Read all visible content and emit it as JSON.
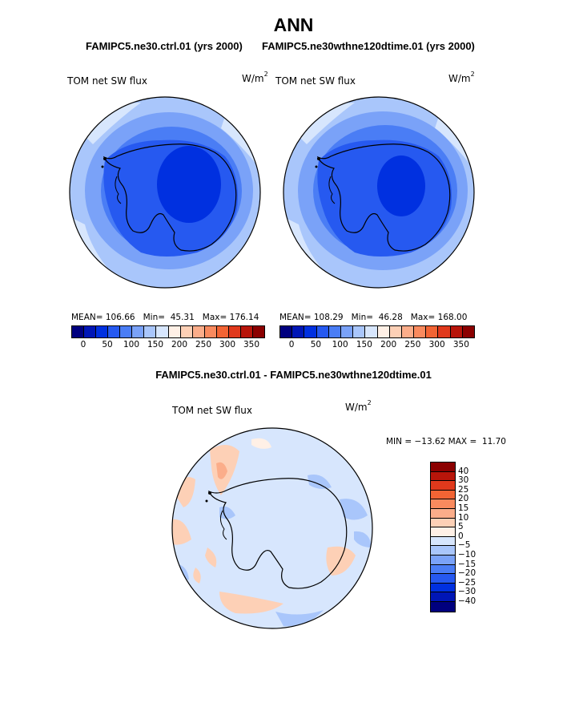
{
  "header": {
    "season": "ANN",
    "case_a": "FAMIPC5.ne30.ctrl.01 (yrs 2000)",
    "case_b": "FAMIPC5.ne30wthne120dtime.01 (yrs 2000)"
  },
  "panels": {
    "left": {
      "variable": "TOM net SW flux",
      "units_base": "W/m",
      "units_exp": "2",
      "stats": "MEAN= 106.66   Min=  45.31   Max= 176.14"
    },
    "right": {
      "variable": "TOM net SW flux",
      "units_base": "W/m",
      "units_exp": "2",
      "stats": "MEAN= 108.29   Min=  46.28   Max= 168.00"
    },
    "diff": {
      "title": "FAMIPC5.ne30.ctrl.01 - FAMIPC5.ne30wthne120dtime.01",
      "variable": "TOM net SW flux",
      "units_base": "W/m",
      "units_exp": "2",
      "minmax": "MIN = −13.62 MAX =  11.70"
    }
  },
  "colorbars": {
    "abs_colors": [
      "#00007f",
      "#0016b6",
      "#0030e0",
      "#2659f0",
      "#4a7df5",
      "#7aa2f8",
      "#a9c6fb",
      "#d7e6fd",
      "#fff0e6",
      "#fdd0b6",
      "#fbad8a",
      "#f98a5e",
      "#f26434",
      "#e0391c",
      "#b8150a",
      "#8b0000"
    ],
    "abs_ticks": [
      "0",
      "50",
      "100",
      "150",
      "200",
      "250",
      "300",
      "350"
    ],
    "diff_colors": [
      "#8b0000",
      "#b8150a",
      "#e0391c",
      "#f26434",
      "#f98a5e",
      "#fbad8a",
      "#fdd0b6",
      "#fff0e6",
      "#d7e6fd",
      "#a9c6fb",
      "#7aa2f8",
      "#4a7df5",
      "#2659f0",
      "#0030e0",
      "#0016b6",
      "#00007f"
    ],
    "diff_ticks": [
      "40",
      "30",
      "25",
      "20",
      "15",
      "10",
      "5",
      "0",
      "−5",
      "−10",
      "−15",
      "−20",
      "−25",
      "−30",
      "−40"
    ]
  },
  "chart_data": [
    {
      "type": "heatmap",
      "projection": "south-polar stereographic",
      "title": "FAMIPC5.ne30.ctrl.01 (yrs 2000)",
      "variable": "TOM net SW flux",
      "units": "W/m^2",
      "mean": 106.66,
      "min": 45.31,
      "max": 176.14,
      "levels": [
        0,
        25,
        50,
        75,
        100,
        125,
        150,
        175,
        200,
        225,
        250,
        275,
        300,
        325,
        350
      ]
    },
    {
      "type": "heatmap",
      "projection": "south-polar stereographic",
      "title": "FAMIPC5.ne30wthne120dtime.01 (yrs 2000)",
      "variable": "TOM net SW flux",
      "units": "W/m^2",
      "mean": 108.29,
      "min": 46.28,
      "max": 168.0,
      "levels": [
        0,
        25,
        50,
        75,
        100,
        125,
        150,
        175,
        200,
        225,
        250,
        275,
        300,
        325,
        350
      ]
    },
    {
      "type": "heatmap",
      "projection": "south-polar stereographic",
      "title": "FAMIPC5.ne30.ctrl.01 - FAMIPC5.ne30wthne120dtime.01",
      "variable": "TOM net SW flux",
      "units": "W/m^2",
      "min": -13.62,
      "max": 11.7,
      "levels": [
        -40,
        -30,
        -25,
        -20,
        -15,
        -10,
        -5,
        0,
        5,
        10,
        15,
        20,
        25,
        30,
        40
      ]
    }
  ]
}
